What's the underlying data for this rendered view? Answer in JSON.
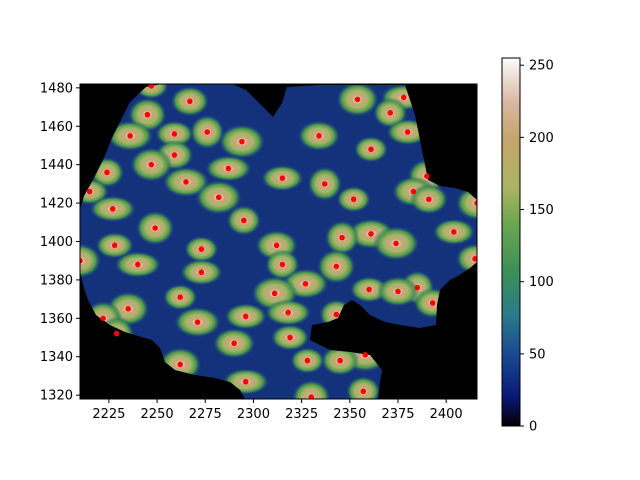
{
  "chart_data": {
    "type": "heatmap",
    "title": "",
    "xlabel": "",
    "ylabel": "",
    "xlim": [
      2210,
      2416
    ],
    "ylim": [
      1318,
      1482
    ],
    "x_ticks": [
      2225,
      2250,
      2275,
      2300,
      2325,
      2350,
      2375,
      2400
    ],
    "y_ticks": [
      1320,
      1340,
      1360,
      1380,
      1400,
      1420,
      1440,
      1460,
      1480
    ],
    "colorbar": {
      "range": [
        0,
        255
      ],
      "ticks": [
        0,
        50,
        100,
        150,
        200,
        250
      ],
      "colormap": "gist_earth"
    },
    "mask_color": "#000000",
    "marker_color": "#ff0000",
    "points": [
      {
        "x": 2247,
        "y": 1481
      },
      {
        "x": 2267,
        "y": 1473
      },
      {
        "x": 2354,
        "y": 1474
      },
      {
        "x": 2378,
        "y": 1475
      },
      {
        "x": 2371,
        "y": 1467
      },
      {
        "x": 2245,
        "y": 1466
      },
      {
        "x": 2380,
        "y": 1457
      },
      {
        "x": 2236,
        "y": 1455
      },
      {
        "x": 2276,
        "y": 1457
      },
      {
        "x": 2259,
        "y": 1456
      },
      {
        "x": 2334,
        "y": 1455
      },
      {
        "x": 2294,
        "y": 1452
      },
      {
        "x": 2361,
        "y": 1448
      },
      {
        "x": 2259,
        "y": 1445
      },
      {
        "x": 2247,
        "y": 1440
      },
      {
        "x": 2287,
        "y": 1438
      },
      {
        "x": 2224,
        "y": 1436
      },
      {
        "x": 2390,
        "y": 1434
      },
      {
        "x": 2315,
        "y": 1433
      },
      {
        "x": 2265,
        "y": 1431
      },
      {
        "x": 2337,
        "y": 1430
      },
      {
        "x": 2215,
        "y": 1426
      },
      {
        "x": 2383,
        "y": 1426
      },
      {
        "x": 2282,
        "y": 1423
      },
      {
        "x": 2352,
        "y": 1422
      },
      {
        "x": 2391,
        "y": 1422
      },
      {
        "x": 2416,
        "y": 1420
      },
      {
        "x": 2227,
        "y": 1417
      },
      {
        "x": 2295,
        "y": 1411
      },
      {
        "x": 2249,
        "y": 1407
      },
      {
        "x": 2404,
        "y": 1405
      },
      {
        "x": 2361,
        "y": 1404
      },
      {
        "x": 2346,
        "y": 1402
      },
      {
        "x": 2228,
        "y": 1398
      },
      {
        "x": 2312,
        "y": 1398
      },
      {
        "x": 2374,
        "y": 1399
      },
      {
        "x": 2273,
        "y": 1396
      },
      {
        "x": 2415,
        "y": 1391
      },
      {
        "x": 2210,
        "y": 1390
      },
      {
        "x": 2240,
        "y": 1388
      },
      {
        "x": 2315,
        "y": 1388
      },
      {
        "x": 2343,
        "y": 1387
      },
      {
        "x": 2273,
        "y": 1384
      },
      {
        "x": 2327,
        "y": 1378
      },
      {
        "x": 2385,
        "y": 1376
      },
      {
        "x": 2360,
        "y": 1375
      },
      {
        "x": 2375,
        "y": 1374
      },
      {
        "x": 2311,
        "y": 1373
      },
      {
        "x": 2262,
        "y": 1371
      },
      {
        "x": 2393,
        "y": 1368
      },
      {
        "x": 2235,
        "y": 1365
      },
      {
        "x": 2318,
        "y": 1363
      },
      {
        "x": 2343,
        "y": 1362
      },
      {
        "x": 2222,
        "y": 1360
      },
      {
        "x": 2296,
        "y": 1361
      },
      {
        "x": 2271,
        "y": 1358
      },
      {
        "x": 2229,
        "y": 1352
      },
      {
        "x": 2319,
        "y": 1350
      },
      {
        "x": 2290,
        "y": 1347
      },
      {
        "x": 2358,
        "y": 1341
      },
      {
        "x": 2328,
        "y": 1338
      },
      {
        "x": 2345,
        "y": 1338
      },
      {
        "x": 2262,
        "y": 1336
      },
      {
        "x": 2296,
        "y": 1327
      },
      {
        "x": 2357,
        "y": 1322
      },
      {
        "x": 2330,
        "y": 1319
      }
    ]
  }
}
